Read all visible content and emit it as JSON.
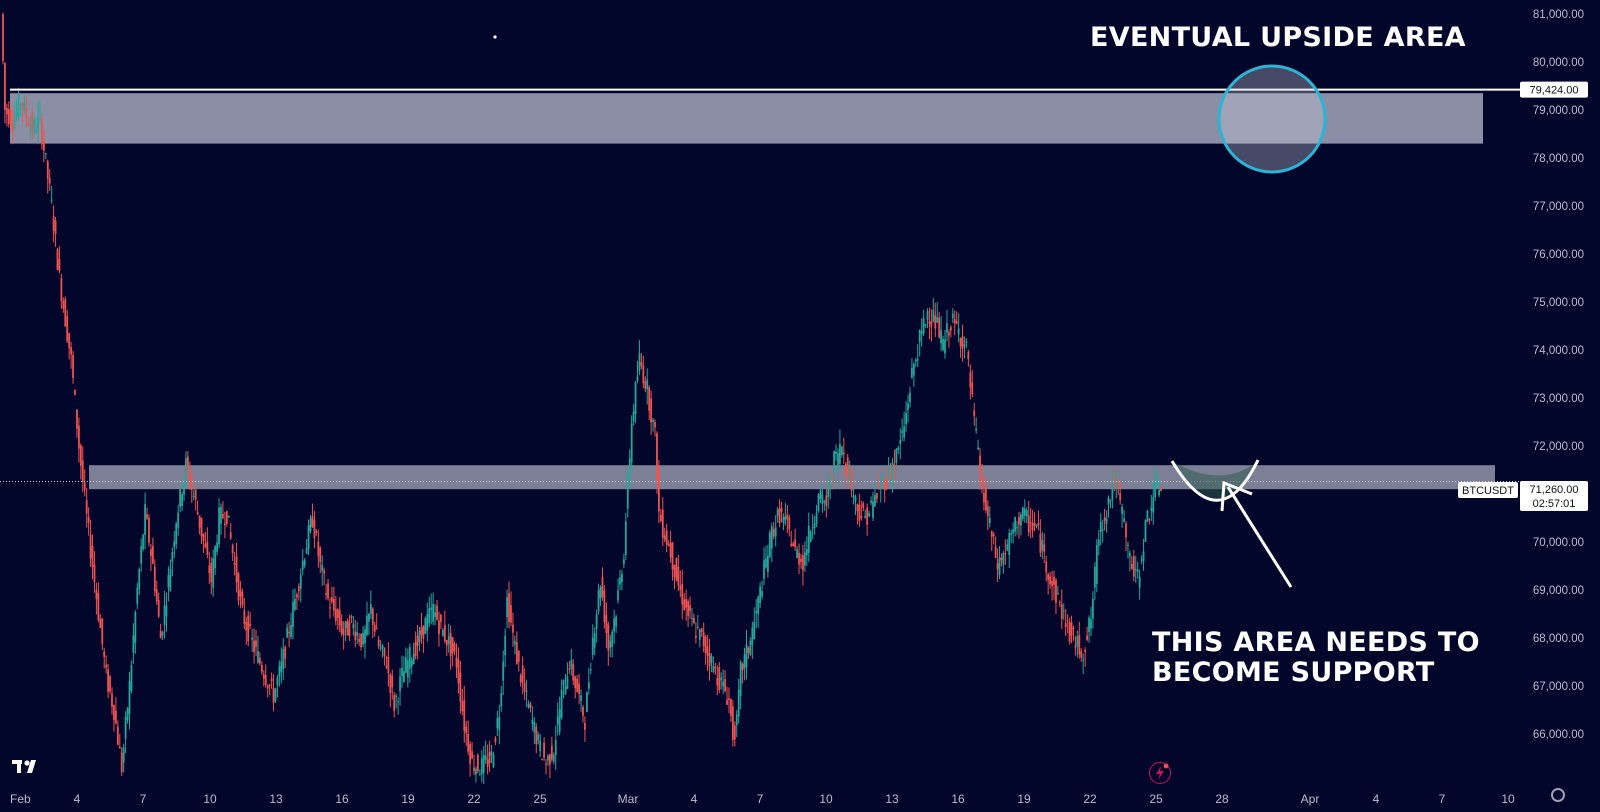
{
  "chart_data": {
    "type": "candlestick",
    "symbol": "BTCUSDT",
    "price_axis": {
      "ticks": [
        81000,
        80000,
        79000,
        78000,
        77000,
        76000,
        75000,
        74000,
        73000,
        72000,
        70000,
        69000,
        68000,
        67000,
        66000
      ],
      "tick_labels": [
        "81,000.00",
        "80,000.00",
        "79,000.00",
        "78,000.00",
        "77,000.00",
        "76,000.00",
        "75,000.00",
        "74,000.00",
        "73,000.00",
        "72,000.00",
        "70,000.00",
        "69,000.00",
        "68,000.00",
        "67,000.00",
        "66,000.00"
      ],
      "ylim": [
        65250,
        81300
      ]
    },
    "time_axis": {
      "tick_labels": [
        "Feb",
        "4",
        "7",
        "10",
        "13",
        "16",
        "19",
        "22",
        "25",
        "Mar",
        "4",
        "7",
        "10",
        "13",
        "16",
        "19",
        "22",
        "25",
        "28",
        "Apr",
        "4",
        "7",
        "10"
      ]
    },
    "horizontal_line": {
      "value": 79424,
      "label": "79,424.00"
    },
    "zones": [
      {
        "name": "upper-resistance-zone",
        "y_low": 78300,
        "y_high": 79350
      },
      {
        "name": "support-zone",
        "y_low": 71100,
        "y_high": 71600
      }
    ],
    "last_price": {
      "label": "BTCUSDT",
      "value": 71260,
      "value_label": "71,260.00",
      "countdown": "02:57:01"
    },
    "price_path": [
      [
        0,
        81000
      ],
      [
        2,
        79000
      ],
      [
        6,
        78800
      ],
      [
        10,
        79200
      ],
      [
        16,
        78600
      ],
      [
        20,
        78800
      ],
      [
        26,
        77000
      ],
      [
        30,
        75500
      ],
      [
        36,
        73800
      ],
      [
        40,
        72000
      ],
      [
        44,
        70500
      ],
      [
        48,
        69200
      ],
      [
        54,
        67200
      ],
      [
        58,
        66500
      ],
      [
        62,
        65300
      ],
      [
        66,
        67000
      ],
      [
        70,
        69000
      ],
      [
        74,
        70600
      ],
      [
        78,
        69500
      ],
      [
        82,
        68000
      ],
      [
        86,
        69200
      ],
      [
        90,
        70500
      ],
      [
        95,
        71600
      ],
      [
        100,
        70800
      ],
      [
        104,
        70000
      ],
      [
        108,
        69200
      ],
      [
        112,
        70500
      ],
      [
        116,
        70600
      ],
      [
        120,
        69500
      ],
      [
        124,
        68500
      ],
      [
        130,
        67800
      ],
      [
        136,
        67200
      ],
      [
        140,
        66800
      ],
      [
        144,
        67400
      ],
      [
        148,
        68200
      ],
      [
        152,
        69000
      ],
      [
        156,
        69800
      ],
      [
        160,
        70500
      ],
      [
        164,
        69500
      ],
      [
        168,
        68800
      ],
      [
        172,
        68500
      ],
      [
        176,
        68100
      ],
      [
        180,
        68300
      ],
      [
        186,
        67900
      ],
      [
        190,
        68600
      ],
      [
        194,
        67800
      ],
      [
        198,
        67500
      ],
      [
        202,
        66600
      ],
      [
        206,
        67200
      ],
      [
        210,
        67600
      ],
      [
        214,
        67900
      ],
      [
        218,
        68300
      ],
      [
        222,
        68600
      ],
      [
        226,
        68200
      ],
      [
        230,
        67900
      ],
      [
        234,
        67500
      ],
      [
        238,
        66200
      ],
      [
        242,
        65400
      ],
      [
        246,
        65300
      ],
      [
        252,
        65500
      ],
      [
        256,
        66500
      ],
      [
        260,
        68800
      ],
      [
        264,
        67800
      ],
      [
        268,
        67000
      ],
      [
        272,
        66400
      ],
      [
        276,
        65800
      ],
      [
        280,
        65400
      ],
      [
        284,
        65700
      ],
      [
        288,
        66800
      ],
      [
        292,
        67500
      ],
      [
        296,
        66900
      ],
      [
        300,
        66300
      ],
      [
        304,
        68000
      ],
      [
        308,
        69200
      ],
      [
        312,
        67800
      ],
      [
        316,
        68600
      ],
      [
        320,
        69800
      ],
      [
        324,
        72500
      ],
      [
        328,
        73800
      ],
      [
        332,
        73200
      ],
      [
        336,
        72200
      ],
      [
        338,
        70600
      ],
      [
        340,
        70300
      ],
      [
        344,
        69800
      ],
      [
        348,
        69100
      ],
      [
        352,
        68600
      ],
      [
        356,
        68200
      ],
      [
        360,
        68000
      ],
      [
        364,
        67600
      ],
      [
        368,
        67200
      ],
      [
        372,
        66900
      ],
      [
        374,
        66700
      ],
      [
        376,
        66000
      ],
      [
        378,
        66200
      ],
      [
        380,
        67300
      ],
      [
        384,
        67800
      ],
      [
        388,
        68500
      ],
      [
        392,
        69400
      ],
      [
        396,
        70200
      ],
      [
        400,
        70600
      ],
      [
        404,
        70300
      ],
      [
        408,
        69800
      ],
      [
        412,
        69600
      ],
      [
        416,
        70300
      ],
      [
        420,
        70900
      ],
      [
        424,
        70800
      ],
      [
        428,
        71700
      ],
      [
        432,
        72000
      ],
      [
        436,
        71300
      ],
      [
        440,
        70700
      ],
      [
        444,
        70500
      ],
      [
        448,
        70800
      ],
      [
        452,
        71200
      ],
      [
        456,
        71400
      ],
      [
        460,
        71800
      ],
      [
        464,
        72400
      ],
      [
        468,
        73500
      ],
      [
        472,
        74200
      ],
      [
        476,
        74800
      ],
      [
        480,
        74600
      ],
      [
        484,
        74100
      ],
      [
        488,
        74600
      ],
      [
        492,
        74400
      ],
      [
        496,
        74000
      ],
      [
        500,
        72500
      ],
      [
        504,
        71100
      ],
      [
        508,
        70300
      ],
      [
        512,
        69500
      ],
      [
        516,
        69800
      ],
      [
        520,
        70200
      ],
      [
        524,
        70600
      ],
      [
        528,
        70400
      ],
      [
        532,
        70300
      ],
      [
        536,
        69700
      ],
      [
        540,
        69100
      ],
      [
        544,
        68700
      ],
      [
        548,
        68200
      ],
      [
        552,
        67900
      ],
      [
        556,
        67700
      ],
      [
        560,
        68400
      ],
      [
        564,
        70200
      ],
      [
        568,
        70700
      ],
      [
        572,
        71300
      ],
      [
        576,
        70600
      ],
      [
        580,
        69600
      ],
      [
        584,
        69200
      ],
      [
        588,
        70300
      ],
      [
        592,
        71000
      ],
      [
        596,
        71200
      ]
    ]
  },
  "annotations": {
    "top_text": "EVENTUAL UPSIDE AREA",
    "support_line1": "THIS AREA NEEDS TO",
    "support_line2": "BECOME SUPPORT"
  },
  "colors": {
    "background": "#02062a",
    "up": "#26a69a",
    "down": "#ef5350",
    "zone": "#9a9fb3",
    "circle": "#29b6d6",
    "axis_text": "#b8bccb",
    "annotation": "#ffffff"
  }
}
